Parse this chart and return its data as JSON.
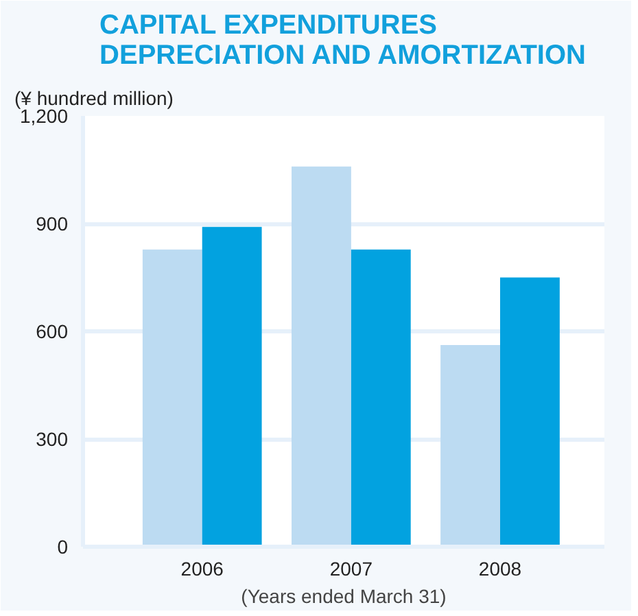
{
  "chart_data": {
    "type": "bar",
    "title": "CAPITAL EXPENDITURES\nDEPRECIATION AND AMORTIZATION",
    "ylabel": "(¥ hundred million)",
    "xlabel": "(Years ended March 31)",
    "categories": [
      "2006",
      "2007",
      "2008"
    ],
    "series": [
      {
        "color": "#bcdbf2",
        "values": [
          828,
          1059,
          562
        ]
      },
      {
        "color": "#02a2e0",
        "values": [
          891,
          828,
          750
        ]
      }
    ],
    "ylim": [
      0,
      1200
    ],
    "yticks": [
      0,
      {
        "value": 300,
        "label": "300"
      },
      {
        "value": 600,
        "label": "600"
      },
      {
        "value": 900,
        "label": "900"
      },
      {
        "value": 1200,
        "label": "1,200"
      }
    ],
    "grid": "y"
  }
}
